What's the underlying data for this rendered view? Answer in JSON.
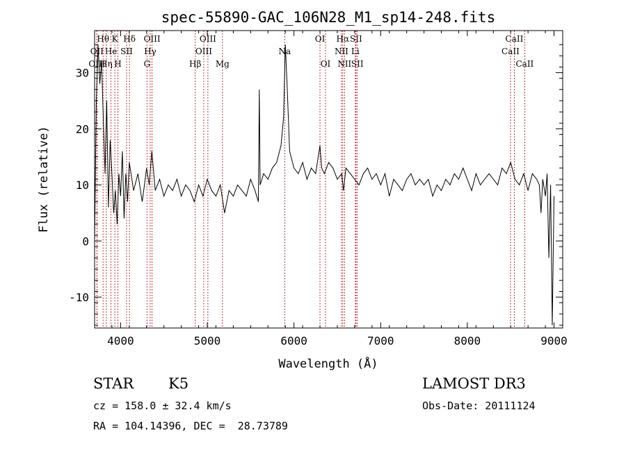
{
  "chart_data": {
    "type": "line",
    "title": "spec-55890-GAC_106N28_M1_sp14-248.fits",
    "xlabel": "Wavelength (Å)",
    "ylabel": "Flux (relative)",
    "xlim": [
      3700,
      9100
    ],
    "ylim": [
      -15.5,
      37.5
    ],
    "xticks": [
      4000,
      5000,
      6000,
      7000,
      8000,
      9000
    ],
    "yticks": [
      -10,
      0,
      10,
      20,
      30
    ],
    "grid": false,
    "lines": [
      {
        "label": "Hθ",
        "wave": 3798,
        "row": 0
      },
      {
        "label": "OII",
        "wave": 3727,
        "row": 1
      },
      {
        "label": "OIII",
        "wave": 3727,
        "row": 2
      },
      {
        "label": "K",
        "wave": 3934,
        "row": 0
      },
      {
        "label": "He",
        "wave": 3889,
        "row": 1
      },
      {
        "label": "Hη",
        "wave": 3835,
        "row": 2
      },
      {
        "label": "Hδ",
        "wave": 4102,
        "row": 0
      },
      {
        "label": "SII",
        "wave": 4069,
        "row": 1
      },
      {
        "label": "H",
        "wave": 3969,
        "row": 2
      },
      {
        "label": "OIII",
        "wave": 4363,
        "row": 0
      },
      {
        "label": "Hγ",
        "wave": 4341,
        "row": 1
      },
      {
        "label": "G",
        "wave": 4304,
        "row": 2
      },
      {
        "label": "OIII",
        "wave": 5007,
        "row": 0
      },
      {
        "label": "OIII",
        "wave": 4959,
        "row": 1
      },
      {
        "label": "Hβ",
        "wave": 4861,
        "row": 2
      },
      {
        "label": "Mg",
        "wave": 5175,
        "row": 2
      },
      {
        "label": "Na",
        "wave": 5893,
        "row": 1
      },
      {
        "label": "OI",
        "wave": 6300,
        "row": 0
      },
      {
        "label": "OI",
        "wave": 6364,
        "row": 2
      },
      {
        "label": "Hα",
        "wave": 6563,
        "row": 0
      },
      {
        "label": "SII",
        "wave": 6716,
        "row": 0
      },
      {
        "label": "NII",
        "wave": 6548,
        "row": 1
      },
      {
        "label": "Li",
        "wave": 6708,
        "row": 1
      },
      {
        "label": "NII",
        "wave": 6583,
        "row": 2
      },
      {
        "label": "SII",
        "wave": 6731,
        "row": 2
      },
      {
        "label": "CaII",
        "wave": 8542,
        "row": 0
      },
      {
        "label": "CaII",
        "wave": 8498,
        "row": 1
      },
      {
        "label": "CaII",
        "wave": 8662,
        "row": 2
      }
    ],
    "series": [
      {
        "x": [
          3700,
          3720,
          3740,
          3760,
          3780,
          3800,
          3820,
          3840,
          3860,
          3880,
          3900,
          3920,
          3940,
          3960,
          3980,
          4000,
          4020,
          4040,
          4060,
          4080,
          4100,
          4150,
          4200,
          4250,
          4300,
          4330,
          4360,
          4400,
          4450,
          4500,
          4550,
          4600,
          4650,
          4700,
          4750,
          4800,
          4850,
          4900,
          4950,
          5000,
          5050,
          5100,
          5150,
          5200,
          5250,
          5300,
          5350,
          5400,
          5450,
          5500,
          5550,
          5590,
          5600,
          5610,
          5650,
          5700,
          5750,
          5800,
          5850,
          5880,
          5900,
          5920,
          5950,
          6000,
          6050,
          6100,
          6150,
          6200,
          6250,
          6300,
          6320,
          6350,
          6400,
          6450,
          6500,
          6550,
          6570,
          6600,
          6650,
          6700,
          6750,
          6800,
          6850,
          6900,
          6950,
          7000,
          7050,
          7100,
          7150,
          7200,
          7250,
          7300,
          7350,
          7400,
          7450,
          7500,
          7550,
          7600,
          7650,
          7700,
          7750,
          7800,
          7850,
          7900,
          7950,
          8000,
          8050,
          8100,
          8150,
          8200,
          8250,
          8300,
          8350,
          8400,
          8450,
          8500,
          8550,
          8600,
          8650,
          8700,
          8750,
          8800,
          8830,
          8850,
          8870,
          8900,
          8920,
          8940,
          8960,
          8980,
          9000
        ],
        "y": [
          0,
          25,
          35,
          28,
          32,
          22,
          12,
          25,
          6,
          18,
          12,
          5,
          9,
          3,
          12,
          8,
          16,
          4,
          12,
          7,
          14,
          9,
          12,
          7,
          13,
          10,
          16,
          9,
          11,
          8,
          10,
          9,
          11,
          8,
          10,
          9,
          7,
          10,
          8,
          11,
          9,
          8,
          10,
          5,
          9,
          8,
          10,
          9,
          8,
          11,
          9,
          7,
          27,
          10,
          12,
          11,
          13,
          14,
          17,
          22,
          35,
          28,
          16,
          13,
          12,
          14,
          11,
          13,
          12,
          17,
          13,
          12,
          14,
          13,
          11,
          12,
          9,
          13,
          12,
          11,
          10,
          12,
          13,
          11,
          12,
          10,
          12,
          8,
          11,
          10,
          9,
          11,
          12,
          10,
          11,
          10,
          11,
          8,
          10,
          9,
          11,
          10,
          12,
          11,
          13,
          11,
          9,
          12,
          10,
          11,
          12,
          11,
          10,
          13,
          12,
          14,
          11,
          10,
          12,
          9,
          12,
          11,
          10,
          5,
          11,
          8,
          12,
          -3,
          10,
          -15,
          8
        ]
      }
    ]
  },
  "info": {
    "class_label": "STAR",
    "subclass": "K5",
    "cz": "cz = 158.0 ± 32.4 km/s",
    "coords": "RA = 104.14396, DEC =  28.73789",
    "survey": "LAMOST DR3",
    "obs_date": "Obs-Date: 20111124"
  },
  "colors": {
    "line_markers": "#b22222",
    "spectrum": "#000000"
  }
}
